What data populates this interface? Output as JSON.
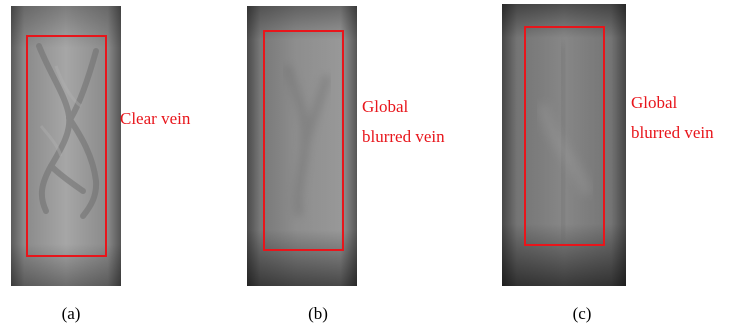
{
  "figure": {
    "panels": [
      {
        "caption": "(a)",
        "annotation_lines": [
          "Clear vein"
        ]
      },
      {
        "caption": "(b)",
        "annotation_lines": [
          "Global",
          "blurred vein"
        ]
      },
      {
        "caption": "(c)",
        "annotation_lines": [
          "Global",
          "blurred vein"
        ]
      }
    ],
    "colors": {
      "roi_box": "#e8151b",
      "annotation_text": "#e8151b",
      "caption_text": "#000000",
      "background": "#ffffff"
    }
  }
}
